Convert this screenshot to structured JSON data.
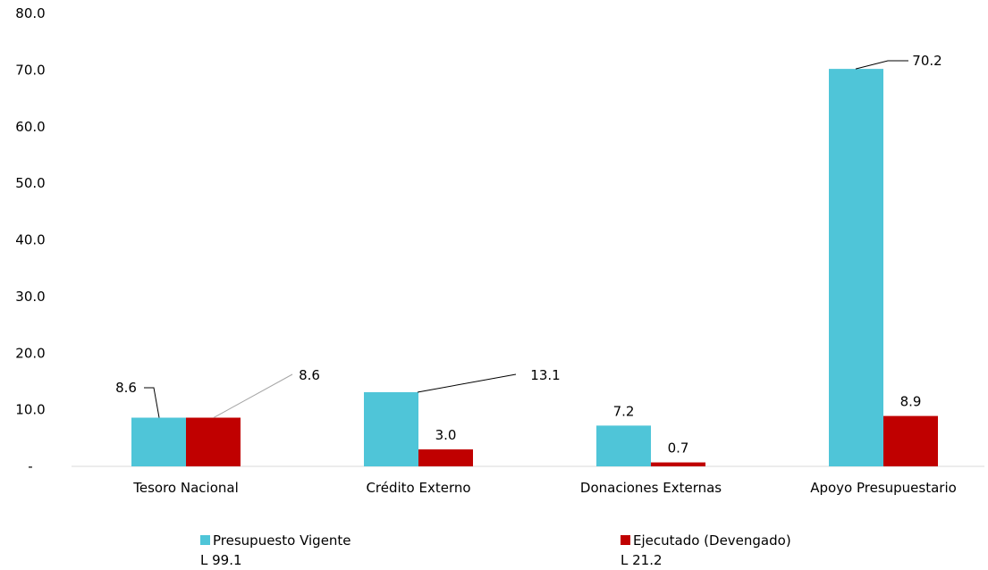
{
  "chart_data": {
    "type": "bar",
    "categories": [
      "Tesoro Nacional",
      "Crédito Externo",
      "Donaciones Externas",
      "Apoyo Presupuestario"
    ],
    "series": [
      {
        "name": "Presupuesto Vigente",
        "color": "#4fc5d8",
        "values": [
          8.6,
          13.1,
          7.2,
          70.2
        ]
      },
      {
        "name": "Ejecutado (Devengado)",
        "color": "#c00000",
        "values": [
          8.6,
          3.0,
          0.7,
          8.9
        ]
      }
    ],
    "value_labels": [
      [
        "8.6",
        "13.1",
        "7.2",
        "70.2"
      ],
      [
        "8.6",
        "3.0",
        "0.7",
        "8.9"
      ]
    ],
    "yticks": [
      "-",
      "10.0",
      "20.0",
      "30.0",
      "40.0",
      "50.0",
      "60.0",
      "70.0",
      "80.0"
    ],
    "ylim": [
      0,
      80
    ],
    "grid": false,
    "legend_position": "bottom"
  },
  "legend": {
    "items": [
      {
        "name": "Presupuesto Vigente",
        "sub": "L 99.1",
        "color": "#4fc5d8"
      },
      {
        "name": "Ejecutado (Devengado)",
        "sub": "L 21.2",
        "color": "#c00000"
      }
    ]
  }
}
